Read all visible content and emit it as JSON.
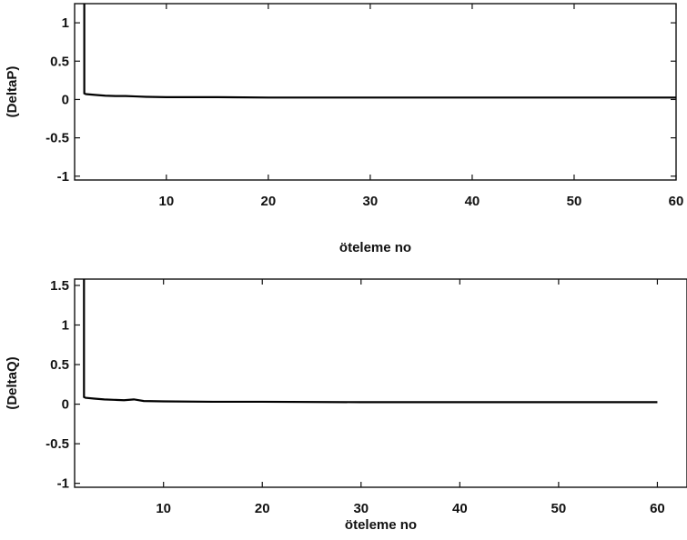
{
  "chart_data": [
    {
      "type": "line",
      "title": "",
      "xlabel": "öteleme no",
      "ylabel": "(DeltaP)",
      "xlim": [
        1,
        60
      ],
      "ylim": [
        -1.05,
        1.25
      ],
      "xticks": [
        10,
        20,
        30,
        40,
        50,
        60
      ],
      "xtick_labels": [
        "10",
        "20",
        "30",
        "40",
        "50",
        "60"
      ],
      "yticks": [
        -1,
        -0.5,
        0,
        0.5,
        1
      ],
      "ytick_labels": [
        "-1",
        "-0.5",
        "0",
        "0.5",
        "1"
      ],
      "grid": false,
      "series": [
        {
          "x": [
            1.95,
            1.95,
            2.1,
            3,
            4,
            5,
            6,
            7,
            8,
            10,
            15,
            20,
            30,
            40,
            50,
            60
          ],
          "y": [
            1.25,
            0.08,
            0.07,
            0.06,
            0.05,
            0.045,
            0.045,
            0.04,
            0.035,
            0.03,
            0.03,
            0.025,
            0.025,
            0.025,
            0.025,
            0.025
          ]
        }
      ]
    },
    {
      "type": "line",
      "title": "",
      "xlabel": "öteleme no",
      "ylabel": "(DeltaQ)",
      "xlim": [
        1,
        63
      ],
      "ylim": [
        -1.05,
        1.58
      ],
      "xticks": [
        10,
        20,
        30,
        40,
        50,
        60
      ],
      "xtick_labels": [
        "10",
        "20",
        "30",
        "40",
        "50",
        "60"
      ],
      "yticks": [
        -1,
        -0.5,
        0,
        0.5,
        1,
        1.5
      ],
      "ytick_labels": [
        "-1",
        "-0.5",
        "0",
        "0.5",
        "1",
        "1.5"
      ],
      "grid": false,
      "series": [
        {
          "x": [
            1.95,
            1.95,
            2.1,
            3,
            4,
            5,
            6,
            7,
            8,
            10,
            15,
            20,
            30,
            40,
            50,
            60
          ],
          "y": [
            1.58,
            0.09,
            0.08,
            0.07,
            0.06,
            0.055,
            0.05,
            0.06,
            0.04,
            0.035,
            0.03,
            0.03,
            0.025,
            0.025,
            0.025,
            0.025
          ]
        }
      ]
    }
  ]
}
